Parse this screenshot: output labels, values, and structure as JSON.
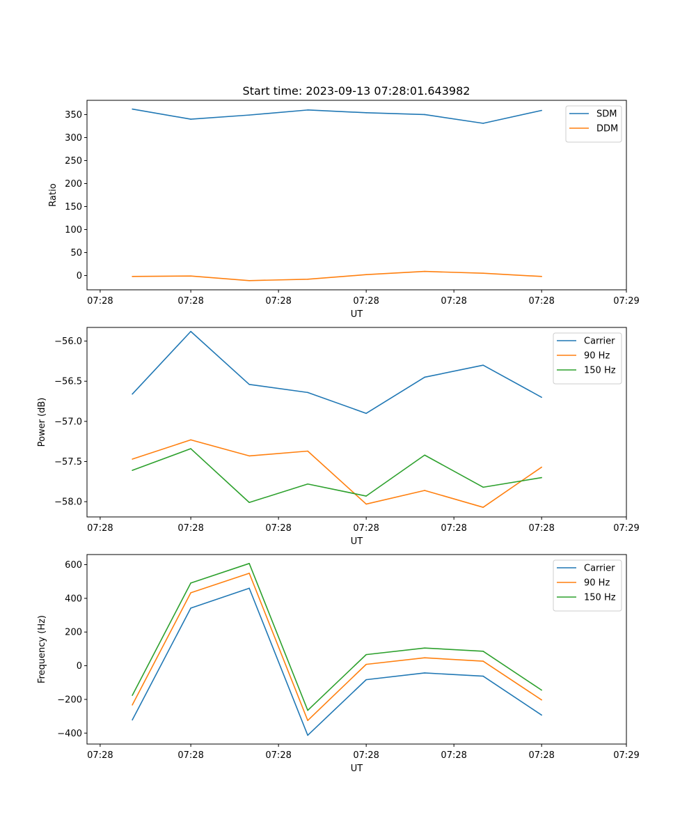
{
  "figure_title": "Start time: 2023-09-13 07:28:01.643982",
  "colors": {
    "blue": "#1f77b4",
    "orange": "#ff7f0e",
    "green": "#2ca02c"
  },
  "chart_data": [
    {
      "type": "line",
      "title": "Start time: 2023-09-13 07:28:01.643982",
      "xlabel": "UT",
      "ylabel": "Ratio",
      "x": [
        1,
        2,
        3,
        4,
        5,
        6,
        7,
        8
      ],
      "xlim": [
        0.225,
        9.45
      ],
      "x_ticks": [
        0.45,
        2.0,
        3.5,
        5.0,
        6.5,
        8.0,
        9.45
      ],
      "x_tick_labels": [
        "07:28",
        "07:28",
        "07:28",
        "07:28",
        "07:28",
        "07:28",
        "07:29"
      ],
      "ylim": [
        -31,
        381
      ],
      "y_ticks": [
        0,
        50,
        100,
        150,
        200,
        250,
        300,
        350
      ],
      "y_tick_labels": [
        "0",
        "50",
        "100",
        "150",
        "200",
        "250",
        "300",
        "350"
      ],
      "legend_position": "top-right",
      "series": [
        {
          "name": "SDM",
          "color": "#1f77b4",
          "values": [
            362,
            340,
            349,
            360,
            354,
            350,
            331,
            359
          ]
        },
        {
          "name": "DDM",
          "color": "#ff7f0e",
          "values": [
            -2,
            -1,
            -11,
            -8,
            2,
            9,
            5,
            -2
          ]
        }
      ]
    },
    {
      "type": "line",
      "title": "",
      "xlabel": "UT",
      "ylabel": "Power (dB)",
      "x": [
        1,
        2,
        3,
        4,
        5,
        6,
        7,
        8
      ],
      "xlim": [
        0.225,
        9.45
      ],
      "x_ticks": [
        0.45,
        2.0,
        3.5,
        5.0,
        6.5,
        8.0,
        9.45
      ],
      "x_tick_labels": [
        "07:28",
        "07:28",
        "07:28",
        "07:28",
        "07:28",
        "07:28",
        "07:29"
      ],
      "ylim": [
        -58.19,
        -55.83
      ],
      "y_ticks": [
        -58.0,
        -57.5,
        -57.0,
        -56.5,
        -56.0
      ],
      "y_tick_labels": [
        "−58.0",
        "−57.5",
        "−57.0",
        "−56.5",
        "−56.0"
      ],
      "legend_position": "top-right",
      "series": [
        {
          "name": "Carrier",
          "color": "#1f77b4",
          "values": [
            -56.66,
            -55.88,
            -56.54,
            -56.64,
            -56.9,
            -56.45,
            -56.3,
            -56.7
          ]
        },
        {
          "name": "90 Hz",
          "color": "#ff7f0e",
          "values": [
            -57.47,
            -57.23,
            -57.43,
            -57.37,
            -58.03,
            -57.86,
            -58.07,
            -57.57
          ]
        },
        {
          "name": "150 Hz",
          "color": "#2ca02c",
          "values": [
            -57.61,
            -57.34,
            -58.01,
            -57.78,
            -57.93,
            -57.42,
            -57.82,
            -57.7
          ]
        }
      ]
    },
    {
      "type": "line",
      "title": "",
      "xlabel": "UT",
      "ylabel": "Frequency (Hz)",
      "x": [
        1,
        2,
        3,
        4,
        5,
        6,
        7,
        8
      ],
      "xlim": [
        0.225,
        9.45
      ],
      "x_ticks": [
        0.45,
        2.0,
        3.5,
        5.0,
        6.5,
        8.0,
        9.45
      ],
      "x_tick_labels": [
        "07:28",
        "07:28",
        "07:28",
        "07:28",
        "07:28",
        "07:28",
        "07:29"
      ],
      "ylim": [
        -465,
        660
      ],
      "y_ticks": [
        -400,
        -200,
        0,
        200,
        400,
        600
      ],
      "y_tick_labels": [
        "−400",
        "−200",
        "0",
        "200",
        "400",
        "600"
      ],
      "legend_position": "top-right",
      "series": [
        {
          "name": "Carrier",
          "color": "#1f77b4",
          "values": [
            -322,
            342,
            460,
            -413,
            -83,
            -43,
            -62,
            -293
          ]
        },
        {
          "name": "90 Hz",
          "color": "#ff7f0e",
          "values": [
            -233,
            433,
            549,
            -325,
            8,
            47,
            27,
            -203
          ]
        },
        {
          "name": "150 Hz",
          "color": "#2ca02c",
          "values": [
            -176,
            491,
            607,
            -265,
            66,
            105,
            86,
            -145
          ]
        }
      ]
    }
  ]
}
